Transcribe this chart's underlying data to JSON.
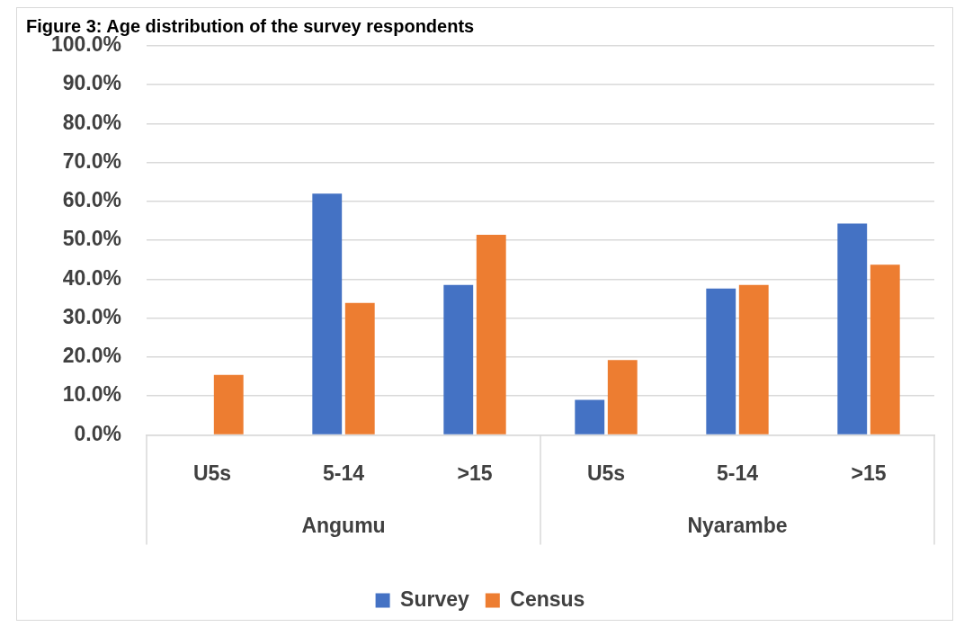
{
  "chart_data": {
    "type": "bar",
    "title": "Figure 3: Age distribution of the survey respondents",
    "categories": [
      "U5s",
      "5-14",
      ">15",
      "U5s",
      "5-14",
      ">15"
    ],
    "annotations": [
      "Angumu",
      "Nyarambe"
    ],
    "series": [
      {
        "name": "Survey",
        "color": "#4472c4",
        "values": [
          0,
          62.0,
          38.5,
          9.0,
          37.6,
          54.3
        ]
      },
      {
        "name": "Census",
        "color": "#ed7d31",
        "values": [
          15.4,
          33.9,
          51.4,
          19.2,
          38.5,
          43.7
        ]
      }
    ],
    "ylim": [
      0,
      100
    ],
    "yticks": [
      {
        "value": 0,
        "label": "0.0%"
      },
      {
        "value": 10,
        "label": "10.0%"
      },
      {
        "value": 20,
        "label": "20.0%"
      },
      {
        "value": 30,
        "label": "30.0%"
      },
      {
        "value": 40,
        "label": "40.0%"
      },
      {
        "value": 50,
        "label": "50.0%"
      },
      {
        "value": 60,
        "label": "60.0%"
      },
      {
        "value": 70,
        "label": "70.0%"
      },
      {
        "value": 80,
        "label": "80.0%"
      },
      {
        "value": 90,
        "label": "90.0%"
      },
      {
        "value": 100,
        "label": "100.0%"
      }
    ],
    "grid": "y",
    "legend": "bottom"
  }
}
